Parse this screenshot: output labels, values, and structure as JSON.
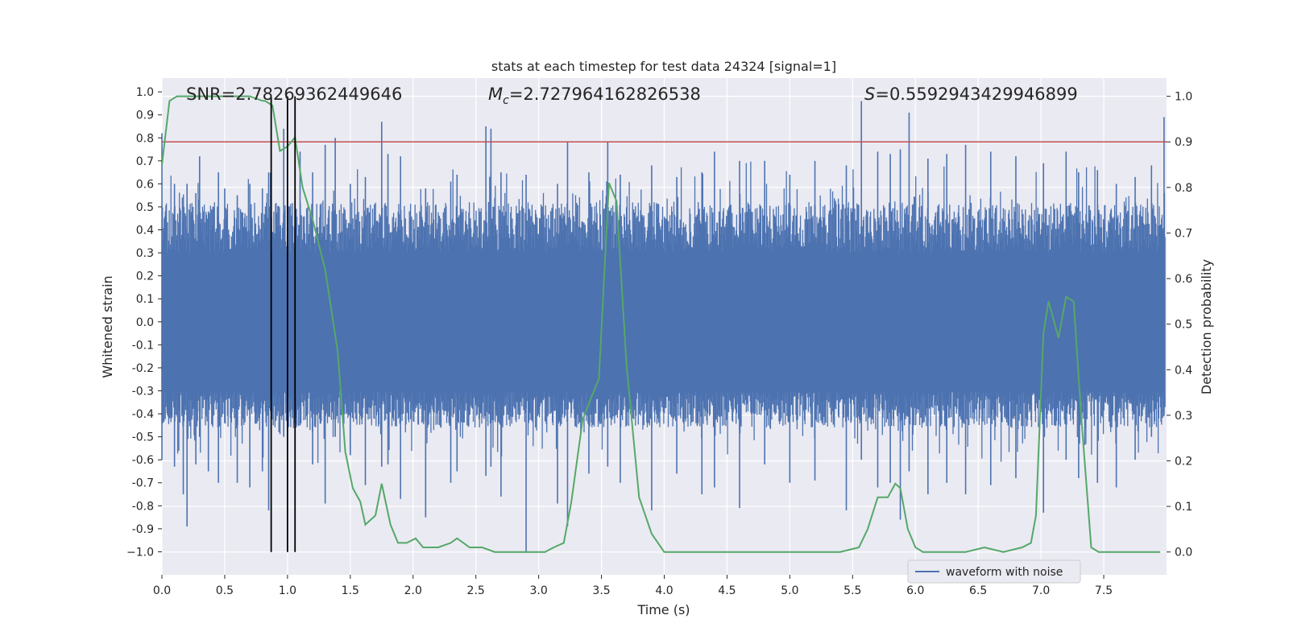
{
  "chart_data": {
    "type": "line",
    "title": "stats at each timestep for test data 24324 [signal=1]",
    "xlabel": "Time (s)",
    "ylabel": "Whitened strain",
    "ylabel_right": "Detection probability",
    "xlim": [
      0.0,
      8.0
    ],
    "ylim": [
      -1.1,
      1.06
    ],
    "ylim_right": [
      -0.05,
      1.04
    ],
    "grid": true,
    "x_ticks": [
      "0.0",
      "0.5",
      "1.0",
      "1.5",
      "2.0",
      "2.5",
      "3.0",
      "3.5",
      "4.0",
      "4.5",
      "5.0",
      "5.5",
      "6.0",
      "6.5",
      "7.0",
      "7.5"
    ],
    "y_ticks": [
      "1.0",
      "0.9",
      "0.8",
      "0.7",
      "0.6",
      "0.5",
      "0.4",
      "0.3",
      "0.2",
      "0.1",
      "0.0",
      "-0.1",
      "-0.2",
      "-0.3",
      "-0.4",
      "-0.5",
      "-0.6",
      "-0.7",
      "-0.8",
      "-0.9",
      "−1.0"
    ],
    "y_ticks_right": [
      "1.0",
      "0.9",
      "0.8",
      "0.7",
      "0.6",
      "0.5",
      "0.4",
      "0.3",
      "0.2",
      "0.1",
      "0.0"
    ],
    "annotations": {
      "snr": "SNR=2.78269362449646",
      "mc_symbol": "M",
      "mc_sub": "c",
      "mc_value": "=2.727964162826538",
      "s_symbol": "S",
      "s_value": "=0.5592943429946899"
    },
    "legend": {
      "label": "waveform with noise",
      "placement": "lower-right"
    },
    "colors": {
      "waveform": "#4c72b0",
      "probability": "#55a868",
      "threshold": "#c44e52",
      "markers": "#000000",
      "axes_bg": "#eaeaf2",
      "grid": "#ffffff"
    },
    "threshold_line": {
      "axis": "right",
      "y": 0.9
    },
    "vertical_lines_x": [
      0.87,
      1.0,
      1.06
    ],
    "waveform_series": {
      "name": "waveform with noise",
      "description_band": "dense noise band mostly within -0.42..0.48 with spikes",
      "spikes": [
        [
          0.0,
          0.82,
          -0.6
        ],
        [
          0.1,
          0.6,
          -0.63
        ],
        [
          0.17,
          0.44,
          -0.75
        ],
        [
          0.2,
          0.6,
          -0.89
        ],
        [
          0.27,
          0.56,
          -0.62
        ],
        [
          0.3,
          0.72,
          -0.5
        ],
        [
          0.37,
          0.48,
          -0.65
        ],
        [
          0.45,
          0.65,
          -0.7
        ],
        [
          0.5,
          0.58,
          -0.44
        ],
        [
          0.6,
          0.55,
          -0.7
        ],
        [
          0.7,
          0.6,
          -0.72
        ],
        [
          0.8,
          0.58,
          -0.65
        ],
        [
          0.85,
          0.65,
          -0.82
        ],
        [
          0.97,
          0.84,
          -0.5
        ],
        [
          1.1,
          0.74,
          -0.45
        ],
        [
          1.2,
          0.65,
          -0.62
        ],
        [
          1.3,
          0.77,
          -0.79
        ],
        [
          1.38,
          0.8,
          -0.5
        ],
        [
          1.5,
          0.6,
          -0.58
        ],
        [
          1.62,
          0.63,
          -0.71
        ],
        [
          1.75,
          0.87,
          -0.63
        ],
        [
          1.8,
          0.73,
          -0.62
        ],
        [
          1.9,
          0.72,
          -0.77
        ],
        [
          2.1,
          0.58,
          -0.85
        ],
        [
          2.3,
          0.61,
          -0.7
        ],
        [
          2.35,
          0.64,
          -0.65
        ],
        [
          2.58,
          0.85,
          -0.67
        ],
        [
          2.62,
          0.84,
          -0.63
        ],
        [
          2.7,
          0.65,
          -0.76
        ],
        [
          2.9,
          0.64,
          -1.0
        ],
        [
          3.15,
          0.6,
          -0.79
        ],
        [
          3.23,
          0.78,
          -0.89
        ],
        [
          3.4,
          0.65,
          -0.66
        ],
        [
          3.55,
          0.78,
          -0.63
        ],
        [
          3.65,
          0.64,
          -0.7
        ],
        [
          3.9,
          0.68,
          -0.82
        ],
        [
          4.1,
          0.63,
          -0.66
        ],
        [
          4.3,
          0.65,
          -0.75
        ],
        [
          4.4,
          0.74,
          -0.72
        ],
        [
          4.6,
          0.7,
          -0.81
        ],
        [
          4.8,
          0.7,
          -0.62
        ],
        [
          5.0,
          0.64,
          -0.7
        ],
        [
          5.2,
          0.7,
          -0.69
        ],
        [
          5.45,
          0.68,
          -0.82
        ],
        [
          5.57,
          0.96,
          -0.6
        ],
        [
          5.7,
          0.74,
          -0.72
        ],
        [
          5.8,
          0.73,
          -0.7
        ],
        [
          5.88,
          0.75,
          -0.86
        ],
        [
          5.95,
          0.91,
          -0.65
        ],
        [
          6.1,
          0.71,
          -0.75
        ],
        [
          6.25,
          0.73,
          -0.7
        ],
        [
          6.4,
          0.77,
          -0.75
        ],
        [
          6.6,
          0.74,
          -0.71
        ],
        [
          6.8,
          0.72,
          -0.68
        ],
        [
          7.02,
          0.69,
          -0.83
        ],
        [
          7.2,
          0.74,
          -0.6
        ],
        [
          7.3,
          0.65,
          -0.68
        ],
        [
          7.45,
          0.66,
          -0.7
        ],
        [
          7.6,
          0.6,
          -0.72
        ],
        [
          7.75,
          0.63,
          -0.6
        ],
        [
          7.88,
          0.68,
          -0.5
        ],
        [
          7.98,
          0.89,
          -0.41
        ]
      ]
    },
    "probability_series": {
      "name": "Detection probability",
      "x": [
        0.0,
        0.06,
        0.12,
        0.2,
        0.3,
        0.4,
        0.5,
        0.6,
        0.7,
        0.8,
        0.82,
        0.88,
        0.94,
        1.0,
        1.06,
        1.12,
        1.2,
        1.3,
        1.4,
        1.46,
        1.52,
        1.58,
        1.62,
        1.7,
        1.75,
        1.82,
        1.88,
        1.95,
        2.02,
        2.08,
        2.15,
        2.2,
        2.3,
        2.35,
        2.45,
        2.55,
        2.65,
        2.75,
        2.85,
        2.95,
        3.05,
        3.12,
        3.2,
        3.26,
        3.35,
        3.42,
        3.48,
        3.56,
        3.62,
        3.7,
        3.8,
        3.9,
        4.0,
        4.2,
        4.4,
        4.6,
        4.8,
        5.0,
        5.2,
        5.4,
        5.55,
        5.62,
        5.7,
        5.78,
        5.84,
        5.88,
        5.94,
        6.0,
        6.06,
        6.2,
        6.4,
        6.55,
        6.7,
        6.85,
        6.92,
        6.96,
        7.02,
        7.06,
        7.14,
        7.2,
        7.26,
        7.32,
        7.4,
        7.46,
        7.6,
        7.8,
        7.95
      ],
      "y": [
        0.85,
        0.99,
        1.0,
        1.0,
        1.0,
        1.0,
        1.0,
        1.0,
        1.0,
        0.99,
        0.99,
        0.98,
        0.88,
        0.89,
        0.91,
        0.8,
        0.73,
        0.62,
        0.44,
        0.22,
        0.14,
        0.11,
        0.06,
        0.08,
        0.15,
        0.06,
        0.02,
        0.02,
        0.03,
        0.01,
        0.01,
        0.01,
        0.02,
        0.03,
        0.01,
        0.01,
        0.0,
        0.0,
        0.0,
        0.0,
        0.0,
        0.01,
        0.02,
        0.11,
        0.29,
        0.34,
        0.38,
        0.81,
        0.77,
        0.41,
        0.12,
        0.04,
        0.0,
        0.0,
        0.0,
        0.0,
        0.0,
        0.0,
        0.0,
        0.0,
        0.01,
        0.05,
        0.12,
        0.12,
        0.15,
        0.14,
        0.05,
        0.01,
        0.0,
        0.0,
        0.0,
        0.01,
        0.0,
        0.01,
        0.02,
        0.08,
        0.48,
        0.55,
        0.47,
        0.56,
        0.55,
        0.3,
        0.01,
        0.0,
        0.0,
        0.0,
        0.0
      ]
    }
  }
}
